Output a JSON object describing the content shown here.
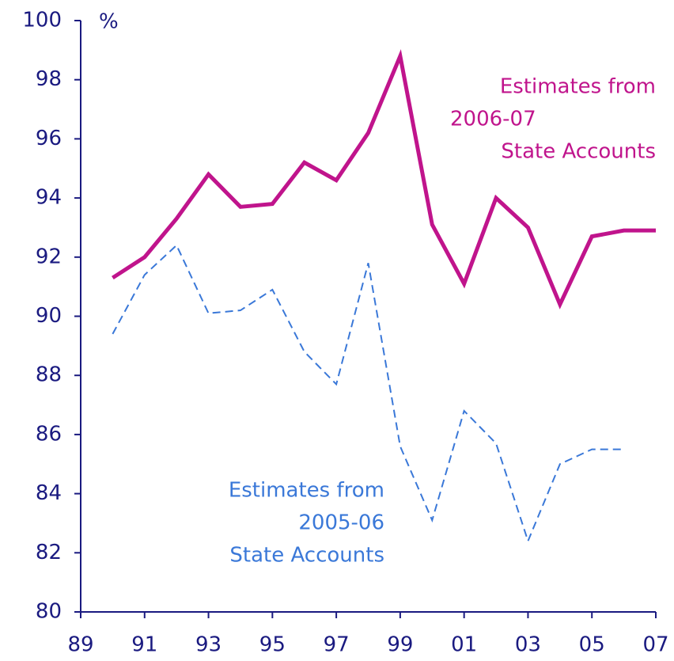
{
  "chart_data": {
    "type": "line",
    "y_label": "%",
    "categories": [
      "89",
      null,
      "91",
      null,
      "93",
      null,
      "95",
      null,
      "97",
      null,
      "99",
      null,
      "01",
      null,
      "03",
      null,
      "05",
      null,
      "07"
    ],
    "series": [
      {
        "name": [
          "Estimates from",
          "2006-07",
          "State Accounts"
        ],
        "color": "#c0148c",
        "dashed": false,
        "values": [
          null,
          91.3,
          92.0,
          93.3,
          94.8,
          93.7,
          93.8,
          95.2,
          94.6,
          96.2,
          98.8,
          93.1,
          91.1,
          94.0,
          93.0,
          90.4,
          92.7,
          92.9,
          92.9
        ]
      },
      {
        "name": [
          "Estimates from",
          "2005-06",
          "State Accounts"
        ],
        "color": "#3a78d8",
        "dashed": true,
        "values": [
          null,
          89.4,
          91.4,
          92.4,
          90.1,
          90.2,
          90.9,
          88.8,
          87.7,
          91.8,
          85.6,
          83.1,
          86.8,
          85.7,
          82.4,
          85.0,
          85.5,
          85.5,
          null
        ]
      }
    ],
    "ylim": [
      80,
      100
    ],
    "yticks": [
      80,
      82,
      84,
      86,
      88,
      90,
      92,
      94,
      96,
      98,
      100
    ]
  }
}
